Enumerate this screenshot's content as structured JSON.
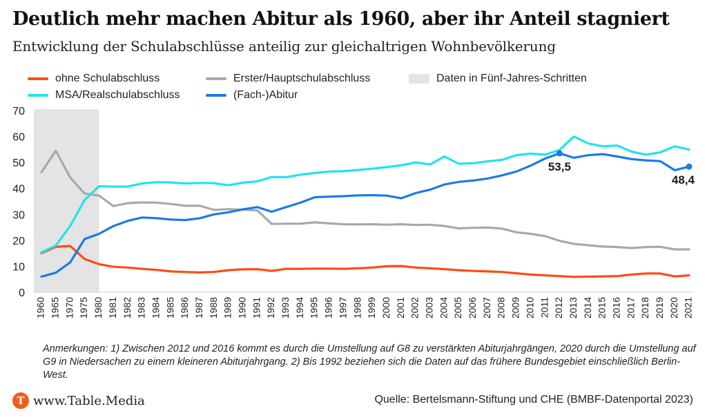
{
  "title": "Deutlich mehr machen Abitur als 1960, aber ihr Anteil stagniert",
  "subtitle": "Entwicklung der Schulabschlüsse anteilig zur gleichaltrigen Wohnbevölkerung",
  "legend": [
    {
      "label": "ohne Schulabschluss",
      "color": "#ff4b12"
    },
    {
      "label": "Erster/Hauptschulabschluss",
      "color": "#a9a9a9"
    },
    {
      "label": "Daten in Fünf-Jahres-Schritten",
      "color": "#e4e4e4"
    },
    {
      "label": "MSA/Realschulabschluss",
      "color": "#1fe3f0"
    },
    {
      "label": "(Fach-)Abitur",
      "color": "#1a7be6"
    }
  ],
  "note": "Anmerkungen: 1) Zwischen 2012 und 2016 kommt es durch die Umstellung auf G8 zu verstärkten Abiturjahrgängen, 2020 durch die Umstellung auf G9 in Niedersachen zu einem kleineren Abiturjahrgang. 2) Bis 1992 beziehen sich die Daten auf das frühere Bundesgebiet einschließlich Berlin-West.",
  "footer": {
    "logo_letter": "T",
    "site": "www.Table.Media",
    "source": "Quelle: Bertelsmann-Stiftung und CHE (BMBF-Datenportal 2023)"
  },
  "chart_data": {
    "type": "line",
    "x": [
      "1960",
      "1965",
      "1970",
      "1975",
      "1980",
      "1981",
      "1982",
      "1983",
      "1984",
      "1985",
      "1986",
      "1987",
      "1988",
      "1989",
      "1990",
      "1991",
      "1992",
      "1993",
      "1994",
      "1995",
      "1996",
      "1997",
      "1998",
      "1999",
      "2000",
      "2001",
      "2002",
      "2003",
      "2004",
      "2005",
      "2006",
      "2007",
      "2008",
      "2009",
      "2010",
      "2011",
      "2012",
      "2013",
      "2014",
      "2015",
      "2016",
      "2017",
      "2018",
      "2019",
      "2020",
      "2021"
    ],
    "ylim": [
      0,
      70
    ],
    "yticks": [
      0,
      10,
      20,
      30,
      40,
      50,
      60,
      70
    ],
    "grid": false,
    "legend_position": "top",
    "shaded_region": {
      "from": "1960",
      "to": "1980",
      "label": "Daten in Fünf-Jahres-Schritten"
    },
    "series": [
      {
        "name": "ohne Schulabschluss",
        "color": "#ff4b12",
        "values": [
          15.0,
          17.5,
          17.8,
          12.8,
          10.8,
          9.8,
          9.5,
          9.0,
          8.6,
          8.0,
          7.8,
          7.6,
          7.8,
          8.5,
          8.8,
          8.9,
          8.2,
          9.0,
          9.0,
          9.1,
          9.1,
          9.0,
          9.2,
          9.5,
          10.0,
          10.1,
          9.5,
          9.2,
          8.9,
          8.5,
          8.2,
          8.0,
          7.8,
          7.3,
          6.8,
          6.5,
          6.2,
          5.9,
          6.0,
          6.1,
          6.2,
          6.8,
          7.2,
          7.2,
          6.1,
          6.5
        ]
      },
      {
        "name": "Erster/Hauptschulabschluss",
        "color": "#a9a9a9",
        "values": [
          46.2,
          54.5,
          44.2,
          38.0,
          37.2,
          33.2,
          34.3,
          34.6,
          34.5,
          34.0,
          33.3,
          33.3,
          31.7,
          32.0,
          31.8,
          31.5,
          26.3,
          26.4,
          26.4,
          26.9,
          26.5,
          26.2,
          26.1,
          26.2,
          26.0,
          26.2,
          25.9,
          26.0,
          25.5,
          24.6,
          24.8,
          24.9,
          24.5,
          23.1,
          22.5,
          21.6,
          19.8,
          18.6,
          18.1,
          17.6,
          17.4,
          17.0,
          17.4,
          17.5,
          16.5,
          16.5
        ]
      },
      {
        "name": "MSA/Realschulabschluss",
        "color": "#1fe3f0",
        "values": [
          15.3,
          18.0,
          25.5,
          35.5,
          40.8,
          40.7,
          40.7,
          41.9,
          42.4,
          42.3,
          41.9,
          42.1,
          42.0,
          41.2,
          42.2,
          42.7,
          44.4,
          44.3,
          45.3,
          45.9,
          46.5,
          46.6,
          47.1,
          47.6,
          48.2,
          48.9,
          50.0,
          49.2,
          52.3,
          49.5,
          49.7,
          50.4,
          51.0,
          52.8,
          53.4,
          53.0,
          54.8,
          60.0,
          57.3,
          56.2,
          56.5,
          54.2,
          53.0,
          53.9,
          56.2,
          55.0
        ]
      },
      {
        "name": "(Fach-)Abitur",
        "color": "#1a7be6",
        "values": [
          6.0,
          7.5,
          11.5,
          20.5,
          22.5,
          25.5,
          27.5,
          28.8,
          28.5,
          28.0,
          27.8,
          28.5,
          30.0,
          30.8,
          31.9,
          32.8,
          31.0,
          32.8,
          34.5,
          36.6,
          36.8,
          37.0,
          37.3,
          37.4,
          37.2,
          36.2,
          38.2,
          39.5,
          41.5,
          42.5,
          43.0,
          43.8,
          45.0,
          46.5,
          48.8,
          51.5,
          53.5,
          51.8,
          52.8,
          53.2,
          52.3,
          51.3,
          50.8,
          50.5,
          47.0,
          48.4
        ]
      }
    ],
    "annotations": [
      {
        "series": "(Fach-)Abitur",
        "x": "2012",
        "label": "53,5"
      },
      {
        "series": "(Fach-)Abitur",
        "x": "2021",
        "label": "48,4"
      }
    ]
  }
}
